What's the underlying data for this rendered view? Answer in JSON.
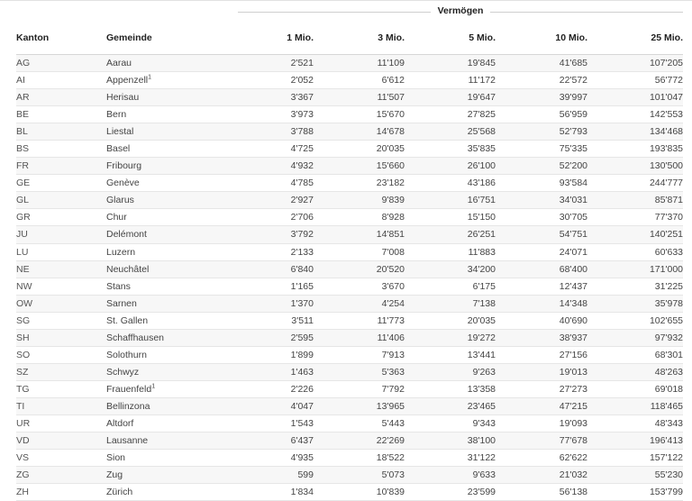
{
  "table": {
    "group_header": "Vermögen",
    "columns": [
      "Kanton",
      "Gemeinde",
      "1 Mio.",
      "3 Mio.",
      "5 Mio.",
      "10 Mio.",
      "25 Mio."
    ],
    "rows": [
      {
        "kanton": "AG",
        "gemeinde": "Aarau",
        "note": "",
        "v1": "2'521",
        "v3": "11'109",
        "v5": "19'845",
        "v10": "41'685",
        "v25": "107'205"
      },
      {
        "kanton": "AI",
        "gemeinde": "Appenzell",
        "note": "1",
        "v1": "2'052",
        "v3": "6'612",
        "v5": "11'172",
        "v10": "22'572",
        "v25": "56'772"
      },
      {
        "kanton": "AR",
        "gemeinde": "Herisau",
        "note": "",
        "v1": "3'367",
        "v3": "11'507",
        "v5": "19'647",
        "v10": "39'997",
        "v25": "101'047"
      },
      {
        "kanton": "BE",
        "gemeinde": "Bern",
        "note": "",
        "v1": "3'973",
        "v3": "15'670",
        "v5": "27'825",
        "v10": "56'959",
        "v25": "142'553"
      },
      {
        "kanton": "BL",
        "gemeinde": "Liestal",
        "note": "",
        "v1": "3'788",
        "v3": "14'678",
        "v5": "25'568",
        "v10": "52'793",
        "v25": "134'468"
      },
      {
        "kanton": "BS",
        "gemeinde": "Basel",
        "note": "",
        "v1": "4'725",
        "v3": "20'035",
        "v5": "35'835",
        "v10": "75'335",
        "v25": "193'835"
      },
      {
        "kanton": "FR",
        "gemeinde": "Fribourg",
        "note": "",
        "v1": "4'932",
        "v3": "15'660",
        "v5": "26'100",
        "v10": "52'200",
        "v25": "130'500"
      },
      {
        "kanton": "GE",
        "gemeinde": "Genève",
        "note": "",
        "v1": "4'785",
        "v3": "23'182",
        "v5": "43'186",
        "v10": "93'584",
        "v25": "244'777"
      },
      {
        "kanton": "GL",
        "gemeinde": "Glarus",
        "note": "",
        "v1": "2'927",
        "v3": "9'839",
        "v5": "16'751",
        "v10": "34'031",
        "v25": "85'871"
      },
      {
        "kanton": "GR",
        "gemeinde": "Chur",
        "note": "",
        "v1": "2'706",
        "v3": "8'928",
        "v5": "15'150",
        "v10": "30'705",
        "v25": "77'370"
      },
      {
        "kanton": "JU",
        "gemeinde": "Delémont",
        "note": "",
        "v1": "3'792",
        "v3": "14'851",
        "v5": "26'251",
        "v10": "54'751",
        "v25": "140'251"
      },
      {
        "kanton": "LU",
        "gemeinde": "Luzern",
        "note": "",
        "v1": "2'133",
        "v3": "7'008",
        "v5": "11'883",
        "v10": "24'071",
        "v25": "60'633"
      },
      {
        "kanton": "NE",
        "gemeinde": "Neuchâtel",
        "note": "",
        "v1": "6'840",
        "v3": "20'520",
        "v5": "34'200",
        "v10": "68'400",
        "v25": "171'000"
      },
      {
        "kanton": "NW",
        "gemeinde": "Stans",
        "note": "",
        "v1": "1'165",
        "v3": "3'670",
        "v5": "6'175",
        "v10": "12'437",
        "v25": "31'225"
      },
      {
        "kanton": "OW",
        "gemeinde": "Sarnen",
        "note": "",
        "v1": "1'370",
        "v3": "4'254",
        "v5": "7'138",
        "v10": "14'348",
        "v25": "35'978"
      },
      {
        "kanton": "SG",
        "gemeinde": "St. Gallen",
        "note": "",
        "v1": "3'511",
        "v3": "11'773",
        "v5": "20'035",
        "v10": "40'690",
        "v25": "102'655"
      },
      {
        "kanton": "SH",
        "gemeinde": "Schaffhausen",
        "note": "",
        "v1": "2'595",
        "v3": "11'406",
        "v5": "19'272",
        "v10": "38'937",
        "v25": "97'932"
      },
      {
        "kanton": "SO",
        "gemeinde": "Solothurn",
        "note": "",
        "v1": "1'899",
        "v3": "7'913",
        "v5": "13'441",
        "v10": "27'156",
        "v25": "68'301"
      },
      {
        "kanton": "SZ",
        "gemeinde": "Schwyz",
        "note": "",
        "v1": "1'463",
        "v3": "5'363",
        "v5": "9'263",
        "v10": "19'013",
        "v25": "48'263"
      },
      {
        "kanton": "TG",
        "gemeinde": "Frauenfeld",
        "note": "1",
        "v1": "2'226",
        "v3": "7'792",
        "v5": "13'358",
        "v10": "27'273",
        "v25": "69'018"
      },
      {
        "kanton": "TI",
        "gemeinde": "Bellinzona",
        "note": "",
        "v1": "4'047",
        "v3": "13'965",
        "v5": "23'465",
        "v10": "47'215",
        "v25": "118'465"
      },
      {
        "kanton": "UR",
        "gemeinde": "Altdorf",
        "note": "",
        "v1": "1'543",
        "v3": "5'443",
        "v5": "9'343",
        "v10": "19'093",
        "v25": "48'343"
      },
      {
        "kanton": "VD",
        "gemeinde": "Lausanne",
        "note": "",
        "v1": "6'437",
        "v3": "22'269",
        "v5": "38'100",
        "v10": "77'678",
        "v25": "196'413"
      },
      {
        "kanton": "VS",
        "gemeinde": "Sion",
        "note": "",
        "v1": "4'935",
        "v3": "18'522",
        "v5": "31'122",
        "v10": "62'622",
        "v25": "157'122"
      },
      {
        "kanton": "ZG",
        "gemeinde": "Zug",
        "note": "",
        "v1": "599",
        "v3": "5'073",
        "v5": "9'633",
        "v10": "21'032",
        "v25": "55'230"
      },
      {
        "kanton": "ZH",
        "gemeinde": "Zürich",
        "note": "",
        "v1": "1'834",
        "v3": "10'839",
        "v5": "23'599",
        "v10": "56'138",
        "v25": "153'799"
      }
    ]
  }
}
